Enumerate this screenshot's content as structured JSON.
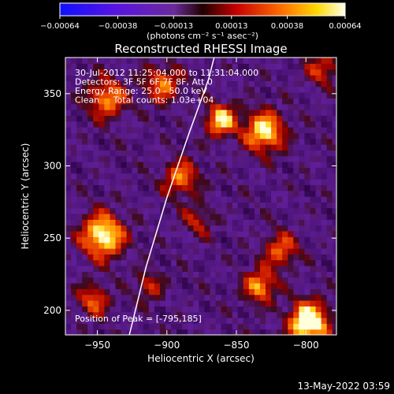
{
  "chart_data": {
    "type": "heatmap",
    "title": "Reconstructed RHESSI Image",
    "xlabel": "Heliocentric X (arcsec)",
    "ylabel": "Heliocentric Y (arcsec)",
    "xlim": [
      -973,
      -778
    ],
    "ylim": [
      183,
      375
    ],
    "xticks": [
      -950,
      -900,
      -850,
      -800
    ],
    "yticks": [
      200,
      250,
      300,
      350
    ],
    "xtick_labels": [
      "−950",
      "−900",
      "−850",
      "−800"
    ],
    "ytick_labels": [
      "200",
      "250",
      "300",
      "350"
    ],
    "colorbar": {
      "range": [
        -0.00064,
        0.00064
      ],
      "ticks": [
        -0.00064,
        -0.00038,
        -0.00013,
        0.00013,
        0.00038,
        0.00064
      ],
      "tick_labels": [
        "−0.00064",
        "−0.00038",
        "−0.00013",
        "0.00013",
        "0.00038",
        "0.00064"
      ],
      "unit_label": "(photons cm⁻² s⁻¹ asec⁻²)"
    },
    "annotations": [
      "30-Jul-2012 11:25:04.000 to 11:31:04.000",
      "Detectors: 3F 5F 6F 7F 8F, Att 0",
      "Energy Range: 25.0 - 50.0 keV",
      "Clean     Total counts: 1.03e+04"
    ],
    "peak_label": "Position of Peak = [-795,185]",
    "peak": [
      -795,
      185
    ],
    "limb_curve": [
      [
        -927,
        183
      ],
      [
        -915,
        230
      ],
      [
        -900,
        278
      ],
      [
        -885,
        320
      ],
      [
        -870,
        360
      ],
      [
        -866,
        375
      ]
    ],
    "hotspots": [
      {
        "x": -800,
        "y": 190,
        "v": 1.0,
        "r": 10
      },
      {
        "x": -948,
        "y": 250,
        "v": 0.85,
        "r": 11
      },
      {
        "x": -832,
        "y": 322,
        "v": 0.8,
        "r": 10
      },
      {
        "x": -863,
        "y": 330,
        "v": 0.75,
        "r": 8
      },
      {
        "x": -892,
        "y": 290,
        "v": 0.55,
        "r": 9
      },
      {
        "x": -945,
        "y": 345,
        "v": 0.6,
        "r": 10
      },
      {
        "x": -820,
        "y": 240,
        "v": 0.5,
        "r": 9
      },
      {
        "x": -835,
        "y": 215,
        "v": 0.65,
        "r": 8
      },
      {
        "x": -955,
        "y": 205,
        "v": 0.5,
        "r": 8
      },
      {
        "x": -905,
        "y": 355,
        "v": 0.55,
        "r": 9
      },
      {
        "x": -790,
        "y": 365,
        "v": 0.45,
        "r": 8
      },
      {
        "x": -915,
        "y": 215,
        "v": 0.4,
        "r": 7
      },
      {
        "x": -880,
        "y": 260,
        "v": 0.35,
        "r": 8
      }
    ]
  },
  "footer": {
    "timestamp": "13-May-2022 03:59"
  }
}
